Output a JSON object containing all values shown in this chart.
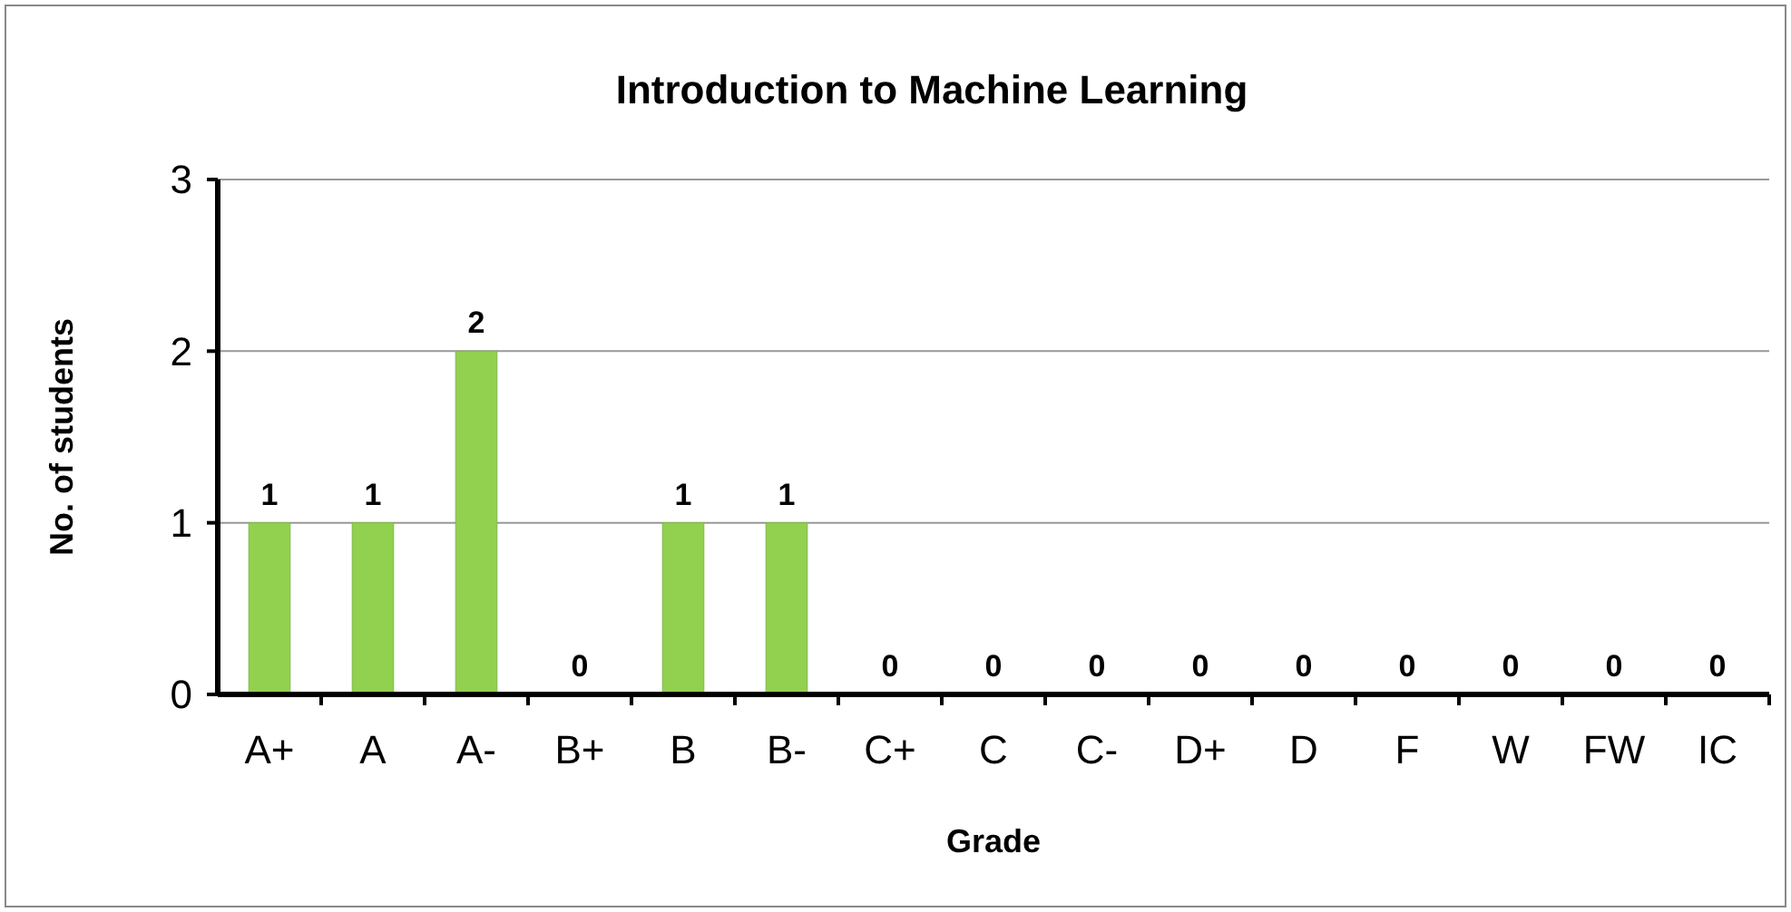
{
  "chart_data": {
    "type": "bar",
    "title": "Introduction to Machine Learning",
    "xlabel": "Grade",
    "ylabel": "No. of students",
    "categories": [
      "A+",
      "A",
      "A-",
      "B+",
      "B",
      "B-",
      "C+",
      "C",
      "C-",
      "D+",
      "D",
      "F",
      "W",
      "FW",
      "IC"
    ],
    "values": [
      1,
      1,
      2,
      0,
      1,
      1,
      0,
      0,
      0,
      0,
      0,
      0,
      0,
      0,
      0
    ],
    "color": "#92d050",
    "ylim": [
      0,
      3
    ],
    "yticks": [
      0,
      1,
      2,
      3
    ],
    "grid": "y",
    "data_labels": true
  }
}
